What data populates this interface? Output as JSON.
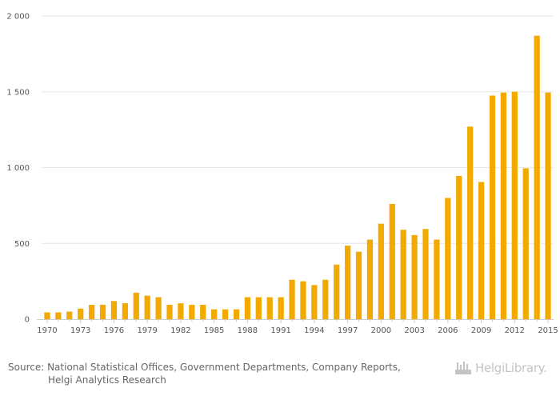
{
  "chart_data": {
    "type": "bar",
    "title": "",
    "xlabel": "",
    "ylabel": "",
    "ylim": [
      0,
      2000
    ],
    "yticks": [
      0,
      500,
      1000,
      1500,
      2000
    ],
    "ytick_labels": [
      "0",
      "500",
      "1 000",
      "1 500",
      "2 000"
    ],
    "categories": [
      "1970",
      "1971",
      "1972",
      "1973",
      "1974",
      "1975",
      "1976",
      "1977",
      "1978",
      "1979",
      "1980",
      "1981",
      "1982",
      "1983",
      "1984",
      "1985",
      "1986",
      "1987",
      "1988",
      "1989",
      "1990",
      "1991",
      "1992",
      "1993",
      "1994",
      "1995",
      "1996",
      "1997",
      "1998",
      "1999",
      "2000",
      "2001",
      "2002",
      "2003",
      "2004",
      "2005",
      "2006",
      "2007",
      "2008",
      "2009",
      "2010",
      "2011",
      "2012",
      "2013",
      "2014",
      "2015"
    ],
    "xtick_labels": [
      "1970",
      "1973",
      "1976",
      "1979",
      "1982",
      "1985",
      "1988",
      "1991",
      "1994",
      "1997",
      "2000",
      "2003",
      "2006",
      "2009",
      "2012",
      "2015"
    ],
    "values": [
      45,
      45,
      50,
      70,
      95,
      95,
      120,
      105,
      175,
      155,
      145,
      95,
      105,
      95,
      95,
      65,
      65,
      65,
      145,
      145,
      145,
      145,
      260,
      250,
      225,
      260,
      360,
      485,
      445,
      525,
      630,
      760,
      590,
      555,
      595,
      525,
      800,
      945,
      1270,
      905,
      1475,
      1495,
      1500,
      995,
      1870,
      1495
    ],
    "bar_color": "#f2a900"
  },
  "footer": {
    "source_line1": "Source: National Statistical Offices, Government Departments, Company Reports,",
    "source_line2": "Helgi Analytics Research"
  },
  "brand": {
    "name": "HelgiLibrary."
  },
  "colors": {
    "grid": "#e6e6e6",
    "axis": "#cccccc",
    "tick_text": "#555555",
    "footer_text": "#666666",
    "brand_text": "#c4c4c4"
  }
}
